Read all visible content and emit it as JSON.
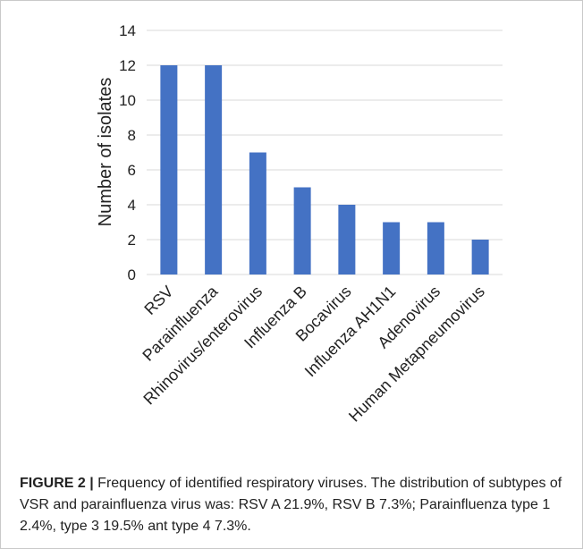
{
  "figure": {
    "label": "FIGURE 2 |",
    "caption": "Frequency of identified respiratory viruses. The distribution of subtypes of VSR and parainfluenza virus was: RSV A 21.9%, RSV B 7.3%; Parainfluenza type 1 2.4%, type 3 19.5% ant type 4 7.3%."
  },
  "chart_data": {
    "type": "bar",
    "categories": [
      "RSV",
      "Parainfluenza",
      "Rhinovirus/enterovirus",
      "Influenza B",
      "Bocavirus",
      "Influenza AH1N1",
      "Adenovirus",
      "Human Metapneumovirus"
    ],
    "values": [
      12,
      12,
      7,
      5,
      4,
      3,
      3,
      2
    ],
    "title": "",
    "xlabel": "",
    "ylabel": "Number of isolates",
    "ylim": [
      0,
      14
    ],
    "yticks": [
      0,
      2,
      4,
      6,
      8,
      10,
      12,
      14
    ],
    "grid": true,
    "legend": "none",
    "bar_color": "#4472c4",
    "grid_color": "#d9d9d9"
  }
}
